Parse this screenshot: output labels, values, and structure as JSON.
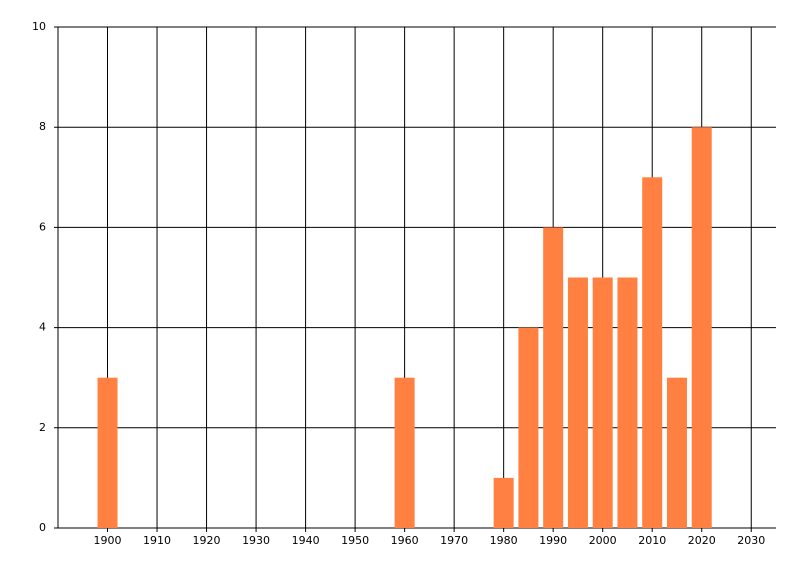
{
  "chart_data": {
    "type": "bar",
    "x": [
      1900,
      1960,
      1980,
      1985,
      1990,
      1995,
      2000,
      2005,
      2010,
      2015,
      2020
    ],
    "values": [
      3,
      3,
      1,
      4,
      6,
      5,
      5,
      5,
      7,
      3,
      8
    ],
    "color": "#ff8040",
    "xlim": [
      1890,
      2035
    ],
    "xticks": [
      1900,
      1910,
      1920,
      1930,
      1940,
      1950,
      1960,
      1970,
      1980,
      1990,
      2000,
      2010,
      2020,
      2030
    ],
    "ylim": [
      0,
      10
    ],
    "yticks": [
      0,
      2,
      4,
      6,
      8,
      10
    ],
    "grid": true
  }
}
